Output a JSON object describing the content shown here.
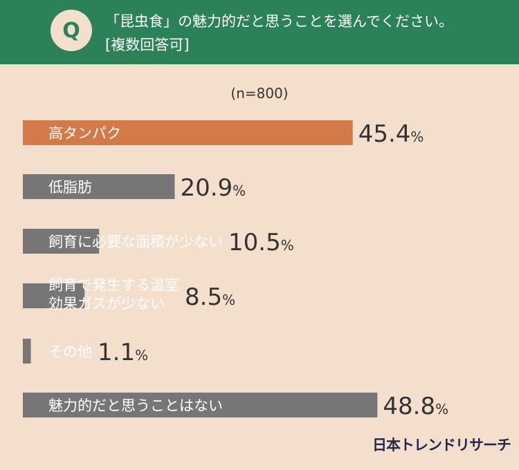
{
  "header": {
    "badge": "Q",
    "question_line1": "「昆虫食」の魅力的だと思うことを選んでください。",
    "question_line2": "[複数回答可]"
  },
  "sample_size": "(n=800)",
  "brand": "日本トレンドリサーチ",
  "colors": {
    "header_bg": "#2b8259",
    "background": "#f4dfcc",
    "highlight_bar": "#d27a48",
    "bar": "#767676",
    "value_text": "#333333"
  },
  "chart_data": {
    "type": "bar",
    "orientation": "horizontal",
    "unit": "%",
    "xlim": [
      0,
      50
    ],
    "grid": false,
    "categories": [
      [
        "高タンパク"
      ],
      [
        "低脂肪"
      ],
      [
        "飼育に必要な面積が少ない"
      ],
      [
        "飼育で発生する温室",
        "効果ガスが少ない"
      ],
      [
        "その他"
      ],
      [
        "魅力的だと思うことはない"
      ]
    ],
    "values": [
      45.4,
      20.9,
      10.5,
      8.5,
      1.1,
      48.8
    ],
    "highlight_index": 0
  }
}
